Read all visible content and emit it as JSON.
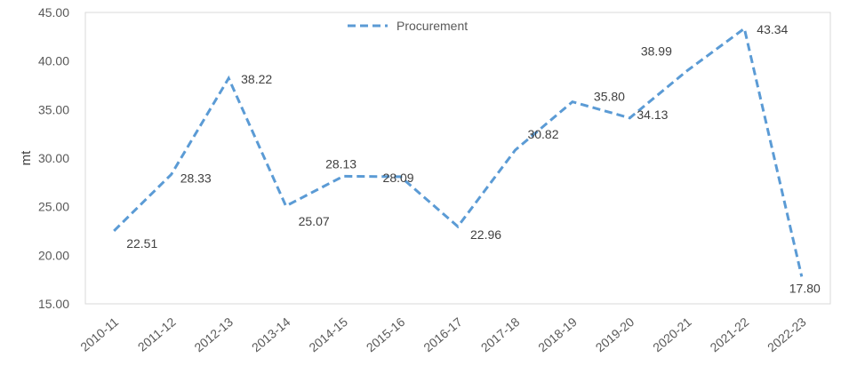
{
  "chart_data": {
    "type": "line",
    "title": "",
    "xlabel": "",
    "ylabel": "mt",
    "ylim": [
      15,
      45
    ],
    "yticks": [
      "15.00",
      "20.00",
      "25.00",
      "30.00",
      "35.00",
      "40.00",
      "45.00"
    ],
    "grid": false,
    "legend_position": "top-center",
    "categories": [
      "2010-11",
      "2011-12",
      "2012-13",
      "2013-14",
      "2014-15",
      "2015-16",
      "2016-17",
      "2017-18",
      "2018-19",
      "2019-20",
      "2020-21",
      "2021-22",
      "2022-23"
    ],
    "series": [
      {
        "name": "Procurement",
        "color": "#5B9BD5",
        "line_style": "dashed",
        "values": [
          22.51,
          28.33,
          38.22,
          25.07,
          28.13,
          28.09,
          22.96,
          30.82,
          35.8,
          34.13,
          38.99,
          43.34,
          17.8
        ],
        "labels": [
          "22.51",
          "28.33",
          "38.22",
          "25.07",
          "28.13",
          "28.09",
          "22.96",
          "30.82",
          "35.80",
          "34.13",
          "38.99",
          "43.34",
          "17.80"
        ]
      }
    ]
  }
}
